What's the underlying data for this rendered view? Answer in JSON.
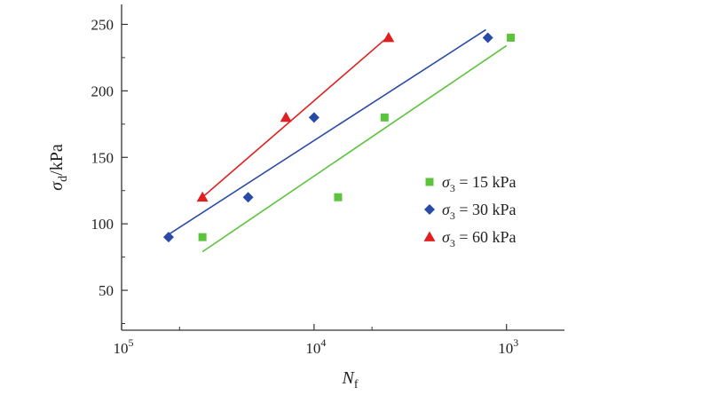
{
  "chart_data": {
    "type": "scatter",
    "x_scale": "log",
    "x_reversed": true,
    "xlim": [
      100000,
      500
    ],
    "ylim": [
      20,
      265
    ],
    "x_ticks": [
      {
        "value": 100000,
        "base": "10",
        "exp": "5"
      },
      {
        "value": 10000,
        "base": "10",
        "exp": "4"
      },
      {
        "value": 1000,
        "base": "10",
        "exp": "3"
      }
    ],
    "y_ticks": [
      "50",
      "100",
      "150",
      "200",
      "250"
    ],
    "xlabel": {
      "main": "N",
      "sub": "f"
    },
    "ylabel": {
      "main": "σ",
      "sub": "d",
      "rest": "/kPa"
    },
    "grid": false,
    "legend_position": "right",
    "series": [
      {
        "name": {
          "main": "σ",
          "sub": "3",
          "rest": " = 15 kPa"
        },
        "marker": "square",
        "color": "#5cc43c",
        "points": [
          [
            38000,
            90
          ],
          [
            7500,
            120
          ],
          [
            4300,
            180
          ],
          [
            950,
            240
          ]
        ],
        "fit": [
          [
            38000,
            79
          ],
          [
            1000,
            234
          ]
        ]
      },
      {
        "name": {
          "main": "σ",
          "sub": "3",
          "rest": " = 30 kPa"
        },
        "marker": "diamond",
        "color": "#2a4aa8",
        "points": [
          [
            57000,
            90
          ],
          [
            22000,
            120
          ],
          [
            10000,
            180
          ],
          [
            1250,
            240
          ]
        ],
        "fit": [
          [
            57000,
            92
          ],
          [
            1280,
            246
          ]
        ]
      },
      {
        "name": {
          "main": "σ",
          "sub": "3",
          "rest": " = 60 kPa"
        },
        "marker": "triangle",
        "color": "#e02020",
        "points": [
          [
            38000,
            120
          ],
          [
            14000,
            180
          ],
          [
            4100,
            240
          ]
        ],
        "fit": [
          [
            38000,
            120
          ],
          [
            4100,
            241
          ]
        ]
      }
    ]
  }
}
